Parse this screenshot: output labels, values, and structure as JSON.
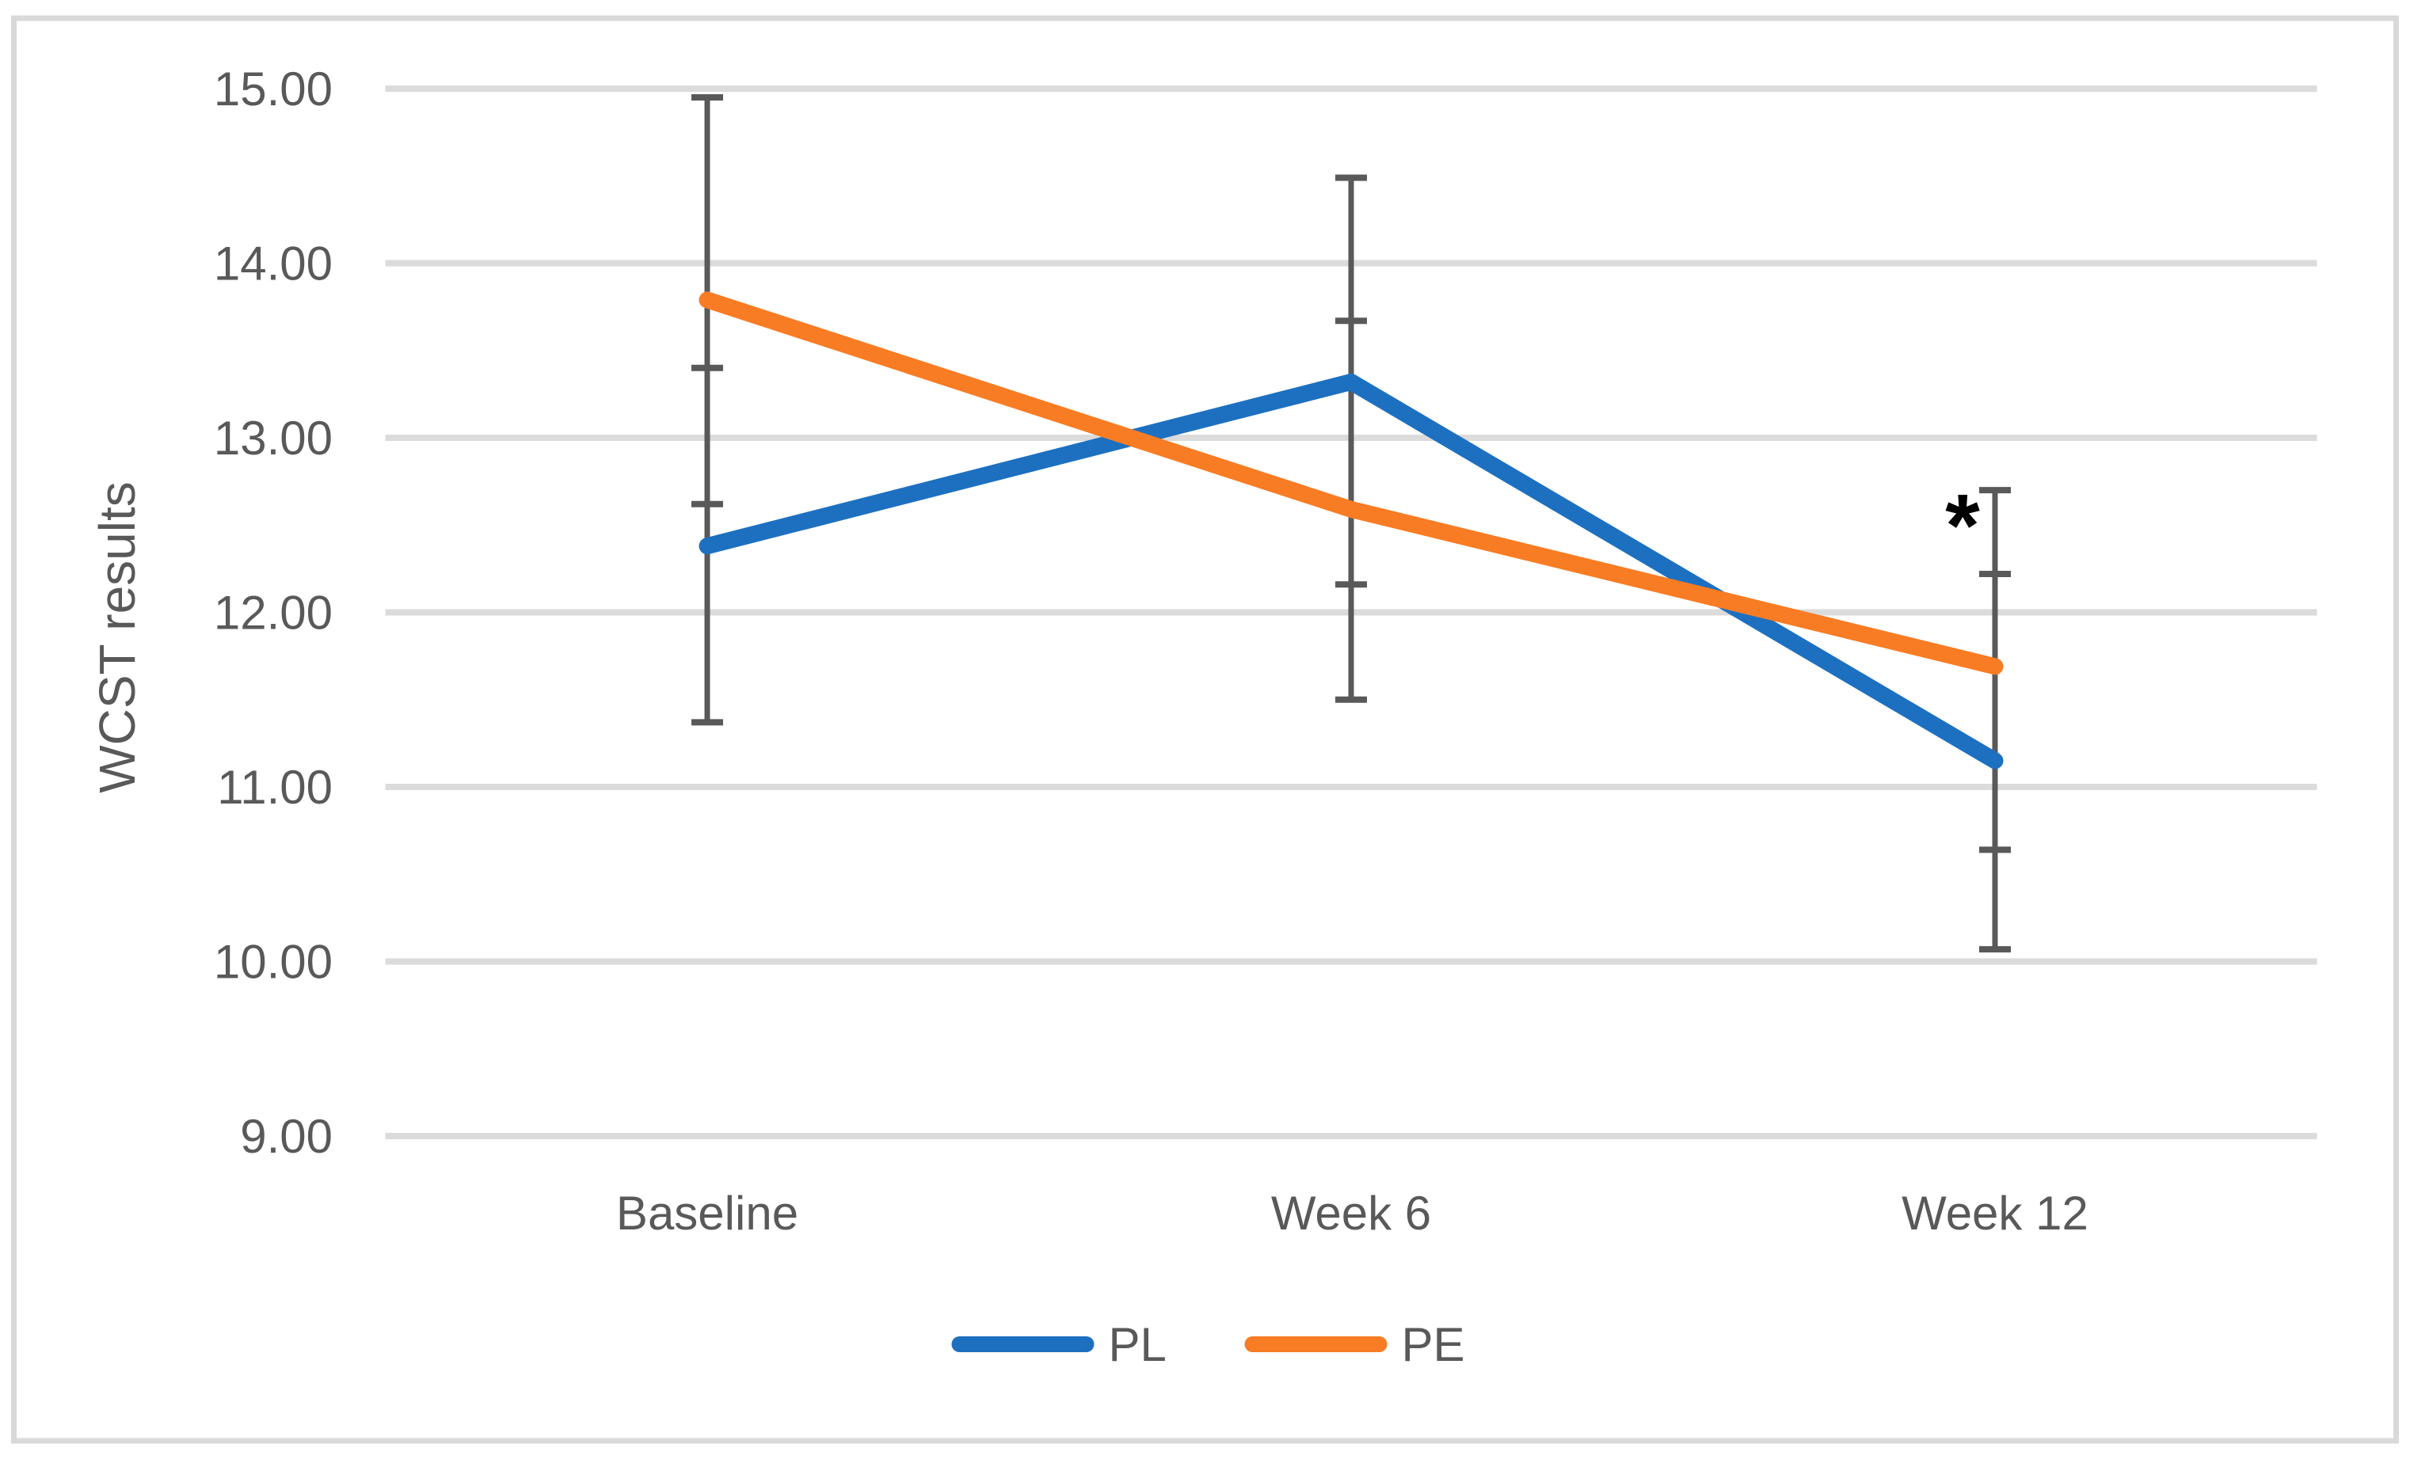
{
  "chart_data": {
    "type": "line",
    "title": "",
    "xlabel": "",
    "ylabel": "WCST results",
    "categories": [
      "Baseline",
      "Week 6",
      "Week 12"
    ],
    "series": [
      {
        "name": "PL",
        "color": "#1d70c0",
        "values": [
          12.38,
          13.32,
          11.15
        ],
        "error_low": [
          11.37,
          12.16,
          10.07
        ],
        "error_high": [
          13.4,
          14.49,
          12.22
        ]
      },
      {
        "name": "PE",
        "color": "#f87c24",
        "values": [
          13.79,
          12.59,
          11.69
        ],
        "error_low": [
          12.62,
          11.5,
          10.64
        ],
        "error_high": [
          14.95,
          13.67,
          12.7
        ]
      }
    ],
    "y_axis": {
      "min": 9,
      "max": 15,
      "step": 1,
      "tick_labels": [
        "9.00",
        "10.00",
        "11.00",
        "12.00",
        "13.00",
        "14.00",
        "15.00"
      ]
    },
    "annotations": [
      {
        "text": "*",
        "category_index": 2,
        "value": 12.55,
        "dx": -41
      }
    ],
    "grid": true,
    "legend_position": "bottom",
    "colors": {
      "gridline": "#dbdbdb",
      "error_bar": "#595959",
      "text": "#595959",
      "border": "#d9d9d9",
      "annotation": "#000000",
      "background": "#ffffff"
    }
  }
}
